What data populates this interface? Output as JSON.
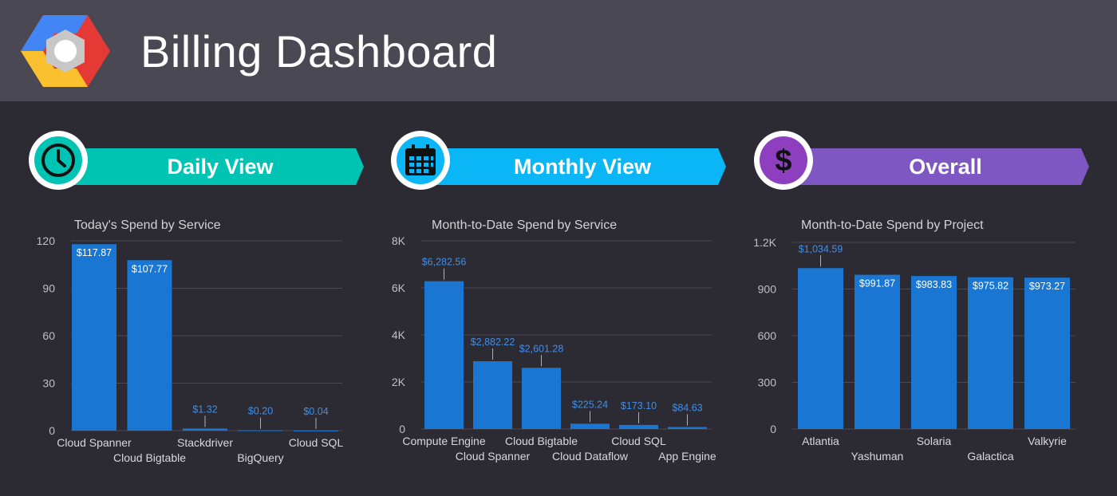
{
  "header": {
    "title": "Billing Dashboard",
    "logo_icon": "google-cloud-hexagon-icon"
  },
  "colors": {
    "bar": "#1976d2",
    "grid": "#4a4a52",
    "teal": "#00c4b3",
    "blue": "#0ab6f5",
    "purple": "#7e57c2"
  },
  "sections": [
    {
      "label": "Daily View",
      "icon": "clock-icon"
    },
    {
      "label": "Monthly View",
      "icon": "calendar-icon"
    },
    {
      "label": "Overall",
      "icon": "dollar-icon"
    }
  ],
  "chart_data": [
    {
      "type": "bar",
      "title": "Today's Spend by Service",
      "categories": [
        "Cloud Spanner",
        "Cloud Bigtable",
        "Stackdriver",
        "BigQuery",
        "Cloud SQL"
      ],
      "values": [
        117.87,
        107.77,
        1.32,
        0.2,
        0.04
      ],
      "value_labels": [
        "$117.87",
        "$107.77",
        "$1.32",
        "$0.20",
        "$0.04"
      ],
      "ylim": [
        0,
        120
      ],
      "yticks": [
        0,
        30,
        60,
        90,
        120
      ],
      "ytick_labels": [
        "0",
        "30",
        "60",
        "90",
        "120"
      ],
      "grid": true,
      "xlabel": "",
      "ylabel": ""
    },
    {
      "type": "bar",
      "title": "Month-to-Date Spend by Service",
      "categories": [
        "Compute Engine",
        "Cloud Spanner",
        "Cloud Bigtable",
        "Cloud Dataflow",
        "Cloud SQL",
        "App Engine"
      ],
      "values": [
        6282.56,
        2882.22,
        2601.28,
        225.24,
        173.1,
        84.63
      ],
      "value_labels": [
        "$6,282.56",
        "$2,882.22",
        "$2,601.28",
        "$225.24",
        "$173.10",
        "$84.63"
      ],
      "ylim": [
        0,
        8000
      ],
      "yticks": [
        0,
        2000,
        4000,
        6000,
        8000
      ],
      "ytick_labels": [
        "0",
        "2K",
        "4K",
        "6K",
        "8K"
      ],
      "grid": true,
      "xlabel": "",
      "ylabel": ""
    },
    {
      "type": "bar",
      "title": "Month-to-Date Spend by Project",
      "categories": [
        "Atlantia",
        "Yashuman",
        "Solaria",
        "Galactica",
        "Valkyrie"
      ],
      "values": [
        1034.59,
        991.87,
        983.83,
        975.82,
        973.27
      ],
      "value_labels": [
        "$1,034.59",
        "$991.87",
        "$983.83",
        "$975.82",
        "$973.27"
      ],
      "ylim": [
        0,
        1200
      ],
      "yticks": [
        0,
        300,
        600,
        900,
        1200
      ],
      "ytick_labels": [
        "0",
        "300",
        "600",
        "900",
        "1.2K"
      ],
      "grid": true,
      "xlabel": "",
      "ylabel": ""
    }
  ]
}
